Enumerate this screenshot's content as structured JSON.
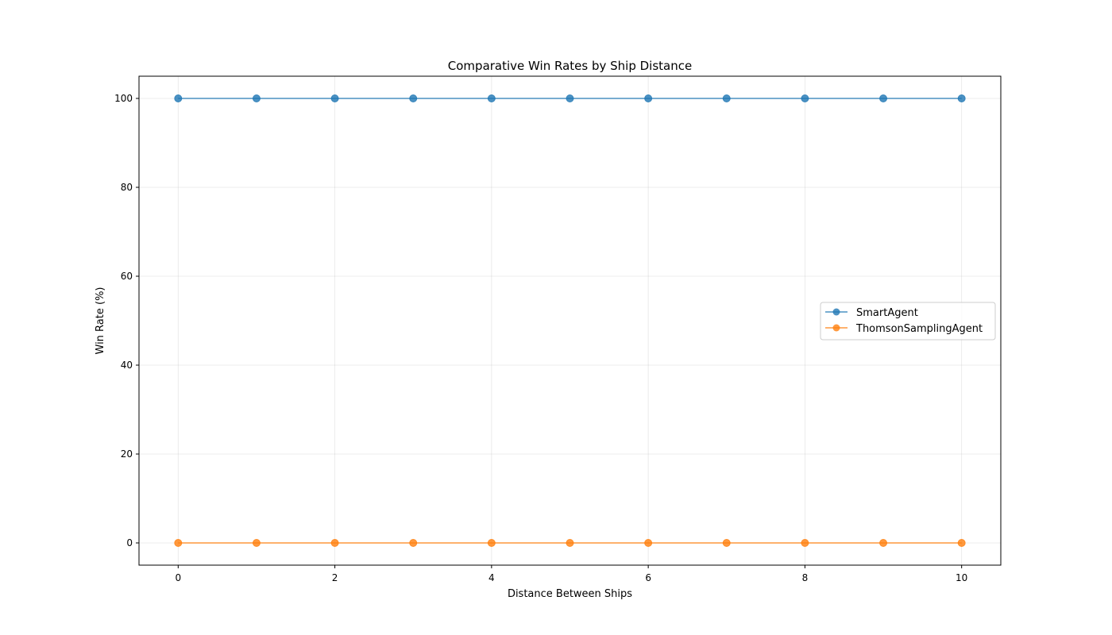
{
  "chart_data": {
    "type": "line",
    "title": "Comparative Win Rates by Ship Distance",
    "xlabel": "Distance Between Ships",
    "ylabel": "Win Rate (%)",
    "x": [
      0,
      1,
      2,
      3,
      4,
      5,
      6,
      7,
      8,
      9,
      10
    ],
    "xlim": [
      -0.5,
      10.5
    ],
    "ylim": [
      -5,
      105
    ],
    "xticks": [
      0,
      2,
      4,
      6,
      8,
      10
    ],
    "yticks": [
      0,
      20,
      40,
      60,
      80,
      100
    ],
    "grid": true,
    "legend_position": "center-right",
    "series": [
      {
        "name": "SmartAgent",
        "color": "#1f77b4",
        "marker": "circle",
        "values": [
          100,
          100,
          100,
          100,
          100,
          100,
          100,
          100,
          100,
          100,
          100
        ]
      },
      {
        "name": "ThomsonSamplingAgent",
        "color": "#ff7f0e",
        "marker": "circle",
        "values": [
          0,
          0,
          0,
          0,
          0,
          0,
          0,
          0,
          0,
          0,
          0
        ]
      }
    ]
  }
}
